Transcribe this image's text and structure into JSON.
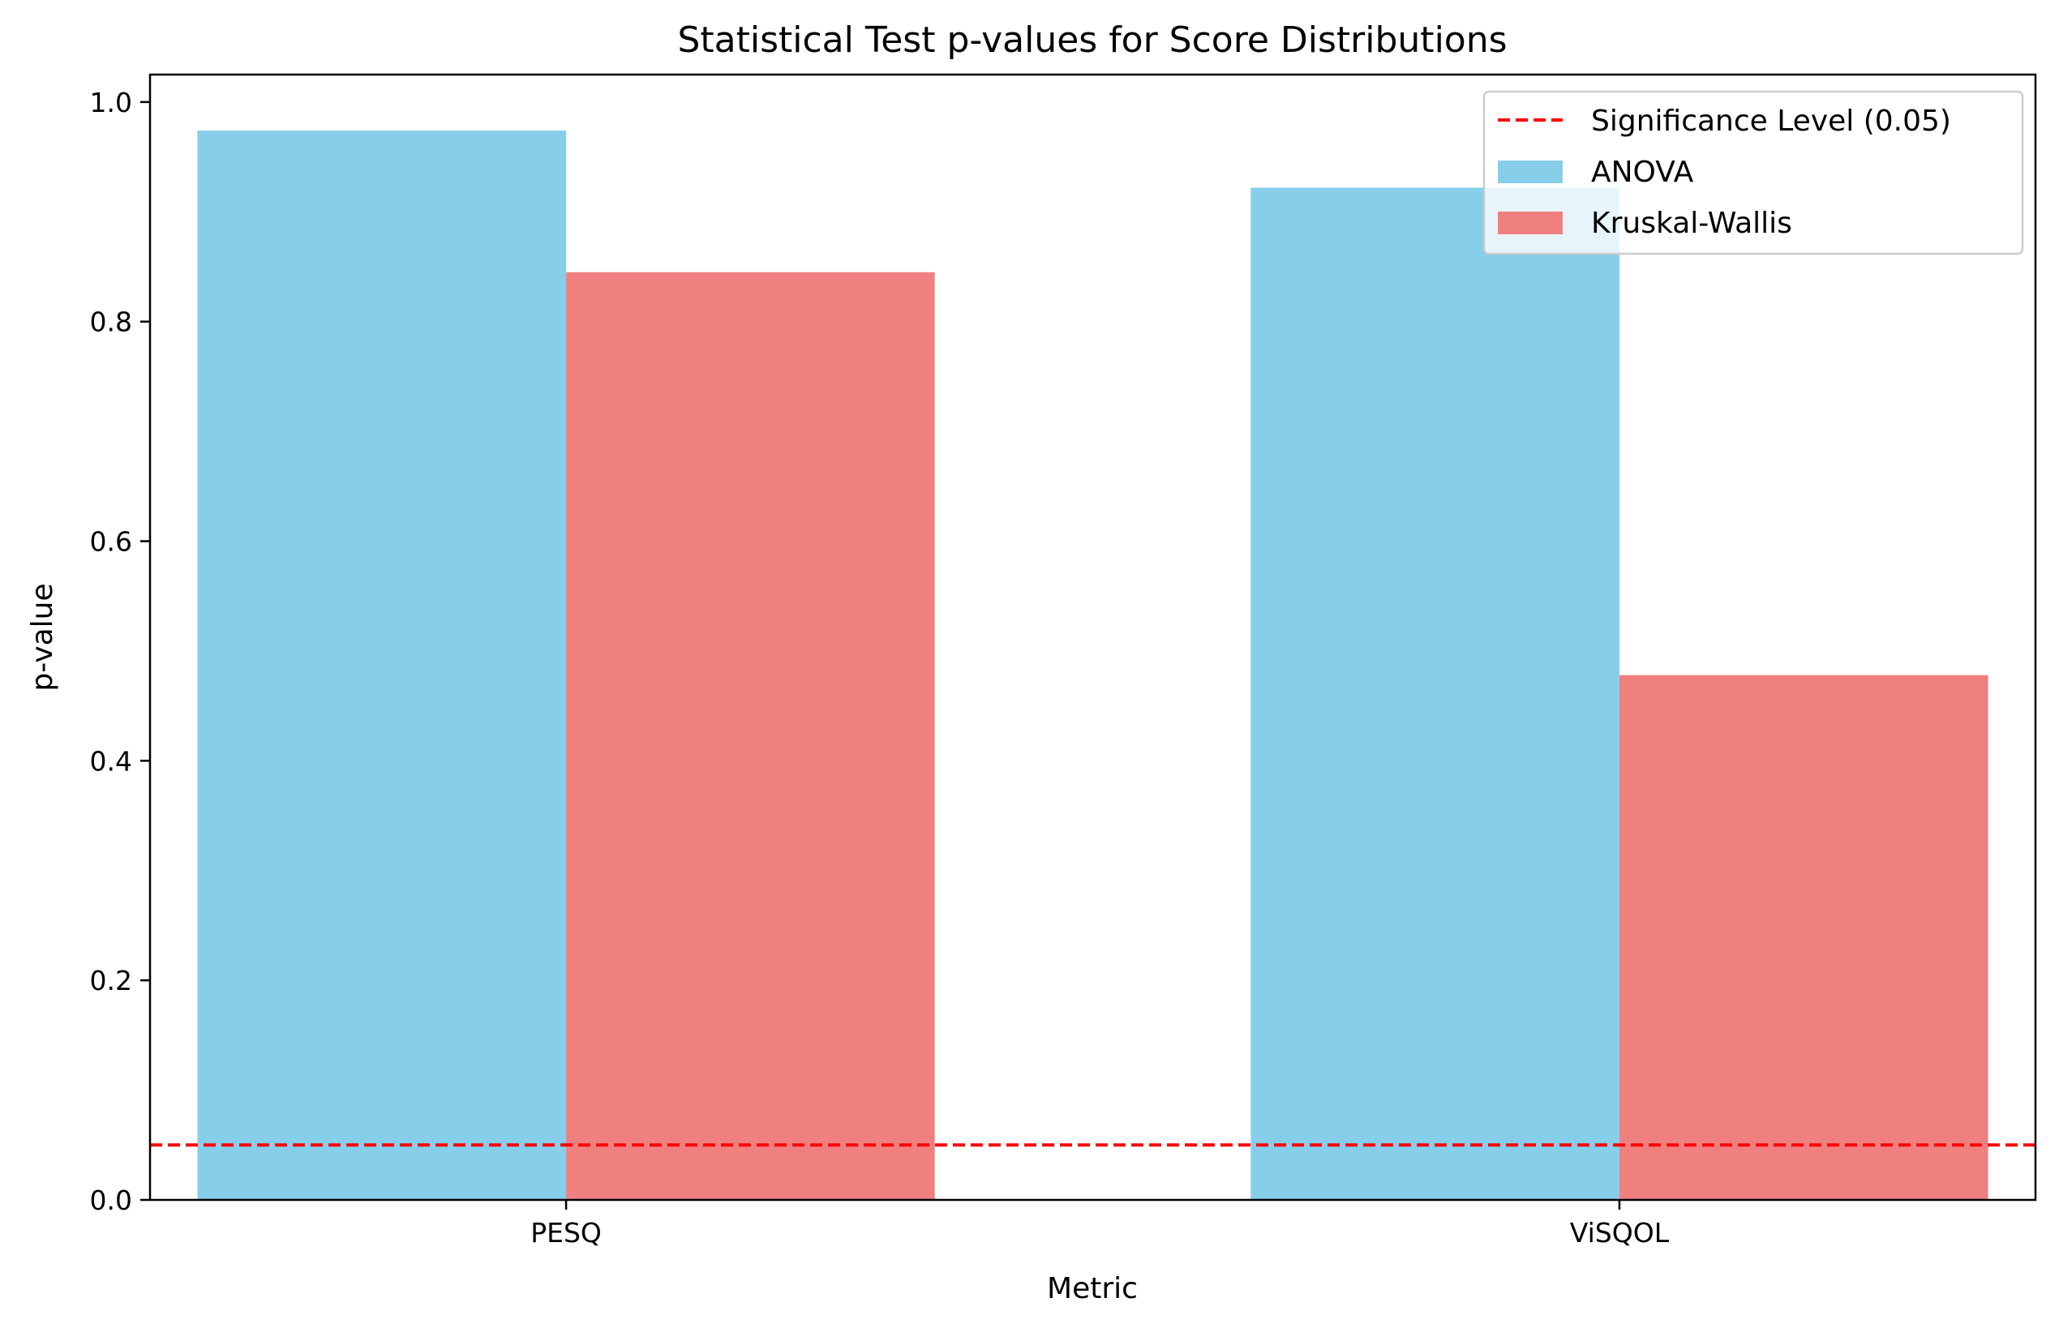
{
  "chart_data": {
    "type": "bar",
    "title": "Statistical Test p-values for Score Distributions",
    "xlabel": "Metric",
    "ylabel": "p-value",
    "categories": [
      "PESQ",
      "ViSQOL"
    ],
    "series": [
      {
        "name": "ANOVA",
        "values": [
          0.974,
          0.922
        ],
        "color": "#87CEEB"
      },
      {
        "name": "Kruskal-Wallis",
        "values": [
          0.845,
          0.478
        ],
        "color": "#F08080"
      }
    ],
    "reference_line": {
      "name": "Significance Level (0.05)",
      "value": 0.05,
      "color": "#FF0000",
      "style": "dashed"
    },
    "ylim": [
      0,
      1.025
    ],
    "yticks": [
      "0.0",
      "0.2",
      "0.4",
      "0.6",
      "0.8",
      "1.0"
    ],
    "grid": false,
    "legend_position": "top-right"
  }
}
